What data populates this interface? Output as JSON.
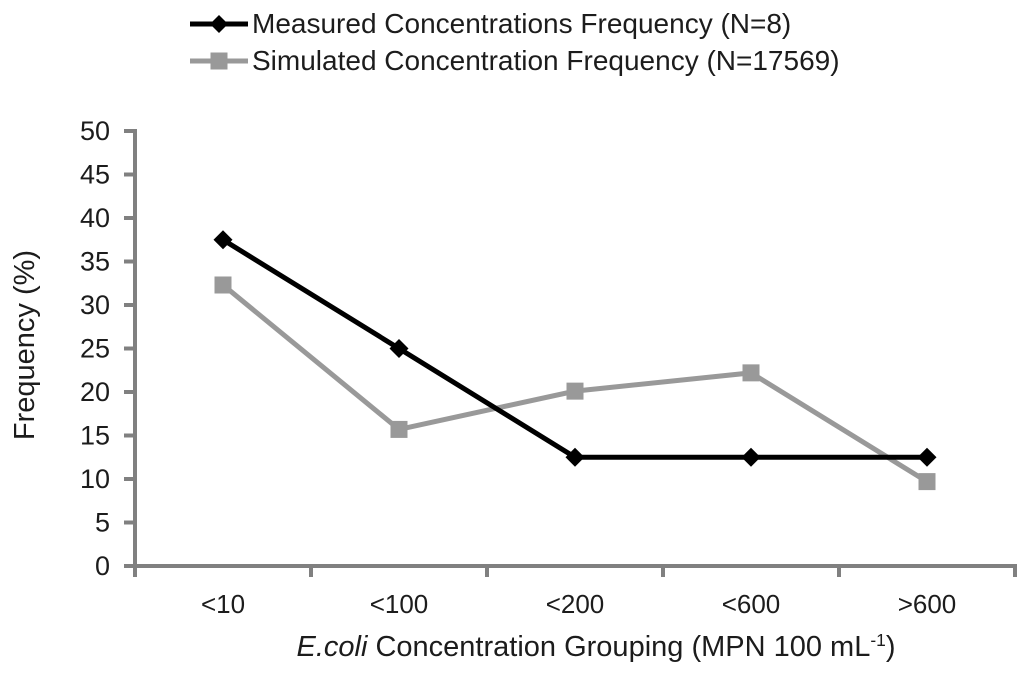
{
  "legend": {
    "position": "top",
    "items": [
      {
        "label": "Measured Concentrations Frequency (N=8)",
        "marker": "diamond",
        "color": "#000000"
      },
      {
        "label": "Simulated Concentration Frequency (N=17569)",
        "marker": "square",
        "color": "#999999"
      }
    ]
  },
  "chart_data": {
    "type": "line",
    "categories": [
      "<10",
      "<100",
      "<200",
      "<600",
      ">600"
    ],
    "series": [
      {
        "name": "Measured Concentrations Frequency (N=8)",
        "marker": "diamond",
        "color": "#000000",
        "values": [
          37.5,
          25,
          12.5,
          12.5,
          12.5
        ]
      },
      {
        "name": "Simulated Concentration Frequency (N=17569)",
        "marker": "square",
        "color": "#999999",
        "values": [
          32.3,
          15.7,
          20.1,
          22.2,
          9.7
        ]
      }
    ],
    "xlabel": "E.coli Concentration Grouping (MPN 100 mL-1)",
    "xlabel_parts": {
      "italic": "E.coli",
      "text": " Concentration Grouping (MPN 100 mL",
      "superscript": "-1",
      "suffix": ")"
    },
    "ylabel": "Frequency (%)",
    "ylim": [
      0,
      50
    ],
    "yticks": [
      0,
      5,
      10,
      15,
      20,
      25,
      30,
      35,
      40,
      45,
      50
    ],
    "grid": false,
    "legend_position": "top",
    "colors": {
      "axis": "#808080",
      "text": "#1c1c1c"
    }
  }
}
